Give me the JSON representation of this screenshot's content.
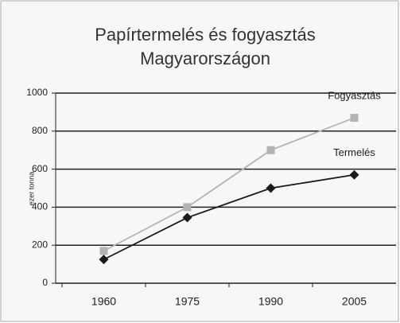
{
  "chart_data": {
    "type": "line",
    "title": [
      "Papírtermelés és fogyasztás",
      "Magyarországon"
    ],
    "y_label": "ezer tonna",
    "categories": [
      "1960",
      "1975",
      "1990",
      "2005"
    ],
    "series": [
      {
        "name": "Fogyasztás",
        "color": "#b4b4b4",
        "marker": "square",
        "values": [
          170,
          400,
          700,
          870
        ]
      },
      {
        "name": "Termelés",
        "color": "#1a1a1a",
        "marker": "diamond",
        "values": [
          125,
          345,
          500,
          570
        ]
      }
    ],
    "ylim": [
      0,
      1000
    ],
    "yticks": [
      0,
      200,
      400,
      600,
      800,
      1000
    ],
    "grid": true
  }
}
